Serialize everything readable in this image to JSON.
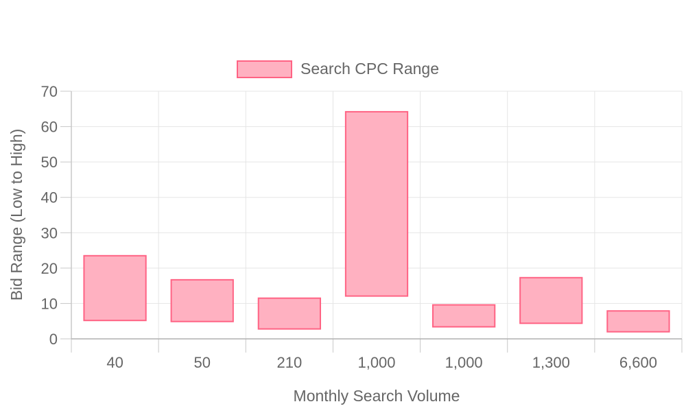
{
  "chart_data": {
    "type": "bar",
    "subtype": "floating-range",
    "categories": [
      "40",
      "50",
      "210",
      "1,000",
      "1,000",
      "1,300",
      "6,600"
    ],
    "series": [
      {
        "name": "Search CPC Range",
        "ranges": [
          [
            5.2,
            23.5
          ],
          [
            4.9,
            16.7
          ],
          [
            2.8,
            11.5
          ],
          [
            12.1,
            64.2
          ],
          [
            3.4,
            9.6
          ],
          [
            4.4,
            17.3
          ],
          [
            2.0,
            7.9
          ]
        ]
      }
    ],
    "xlabel": "Monthly Search Volume",
    "ylabel": "Bid Range (Low to High)",
    "ylim": [
      0,
      70
    ],
    "yticks": [
      0,
      10,
      20,
      30,
      40,
      50,
      60,
      70
    ],
    "grid": true,
    "legend_position": "top",
    "colors": {
      "fill": "#ffb1c1",
      "stroke": "#ff6384",
      "grid": "#e5e5e5",
      "axis": "#c8c8c8",
      "text": "#666666"
    }
  }
}
